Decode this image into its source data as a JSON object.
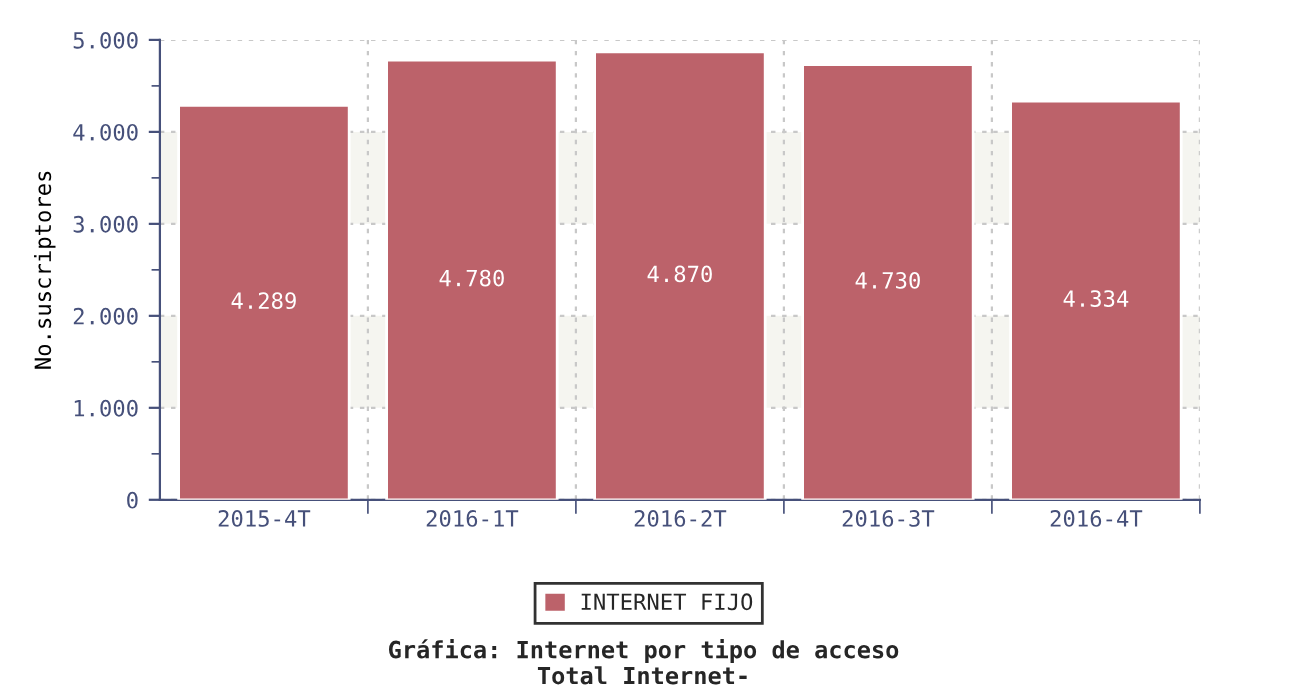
{
  "chart_data": {
    "type": "bar",
    "title": "Gráfica: Internet por tipo de acceso",
    "subtitle": "Total Internet-",
    "ylabel": "No.suscriptores",
    "categories": [
      "2015-4T",
      "2016-1T",
      "2016-2T",
      "2016-3T",
      "2016-4T"
    ],
    "series": [
      {
        "name": "INTERNET FIJO",
        "color": "#bc626a",
        "values": [
          4289,
          4780,
          4870,
          4730,
          4334
        ]
      }
    ],
    "value_labels": [
      "4.289",
      "4.780",
      "4.870",
      "4.730",
      "4.334"
    ],
    "ylim": [
      0,
      5000
    ],
    "yticks": [
      {
        "value": 0,
        "label": "0"
      },
      {
        "value": 1000,
        "label": "1.000"
      },
      {
        "value": 2000,
        "label": "2.000"
      },
      {
        "value": 3000,
        "label": "3.000"
      },
      {
        "value": 4000,
        "label": "4.000"
      },
      {
        "value": 5000,
        "label": "5.000"
      }
    ],
    "bands": [
      {
        "axis": "y",
        "from": 1000,
        "to": 2000,
        "color": "#f5f5f0"
      },
      {
        "axis": "y",
        "from": 3000,
        "to": 4000,
        "color": "#f5f5f0"
      }
    ],
    "grid": true,
    "legend": "bottom"
  }
}
